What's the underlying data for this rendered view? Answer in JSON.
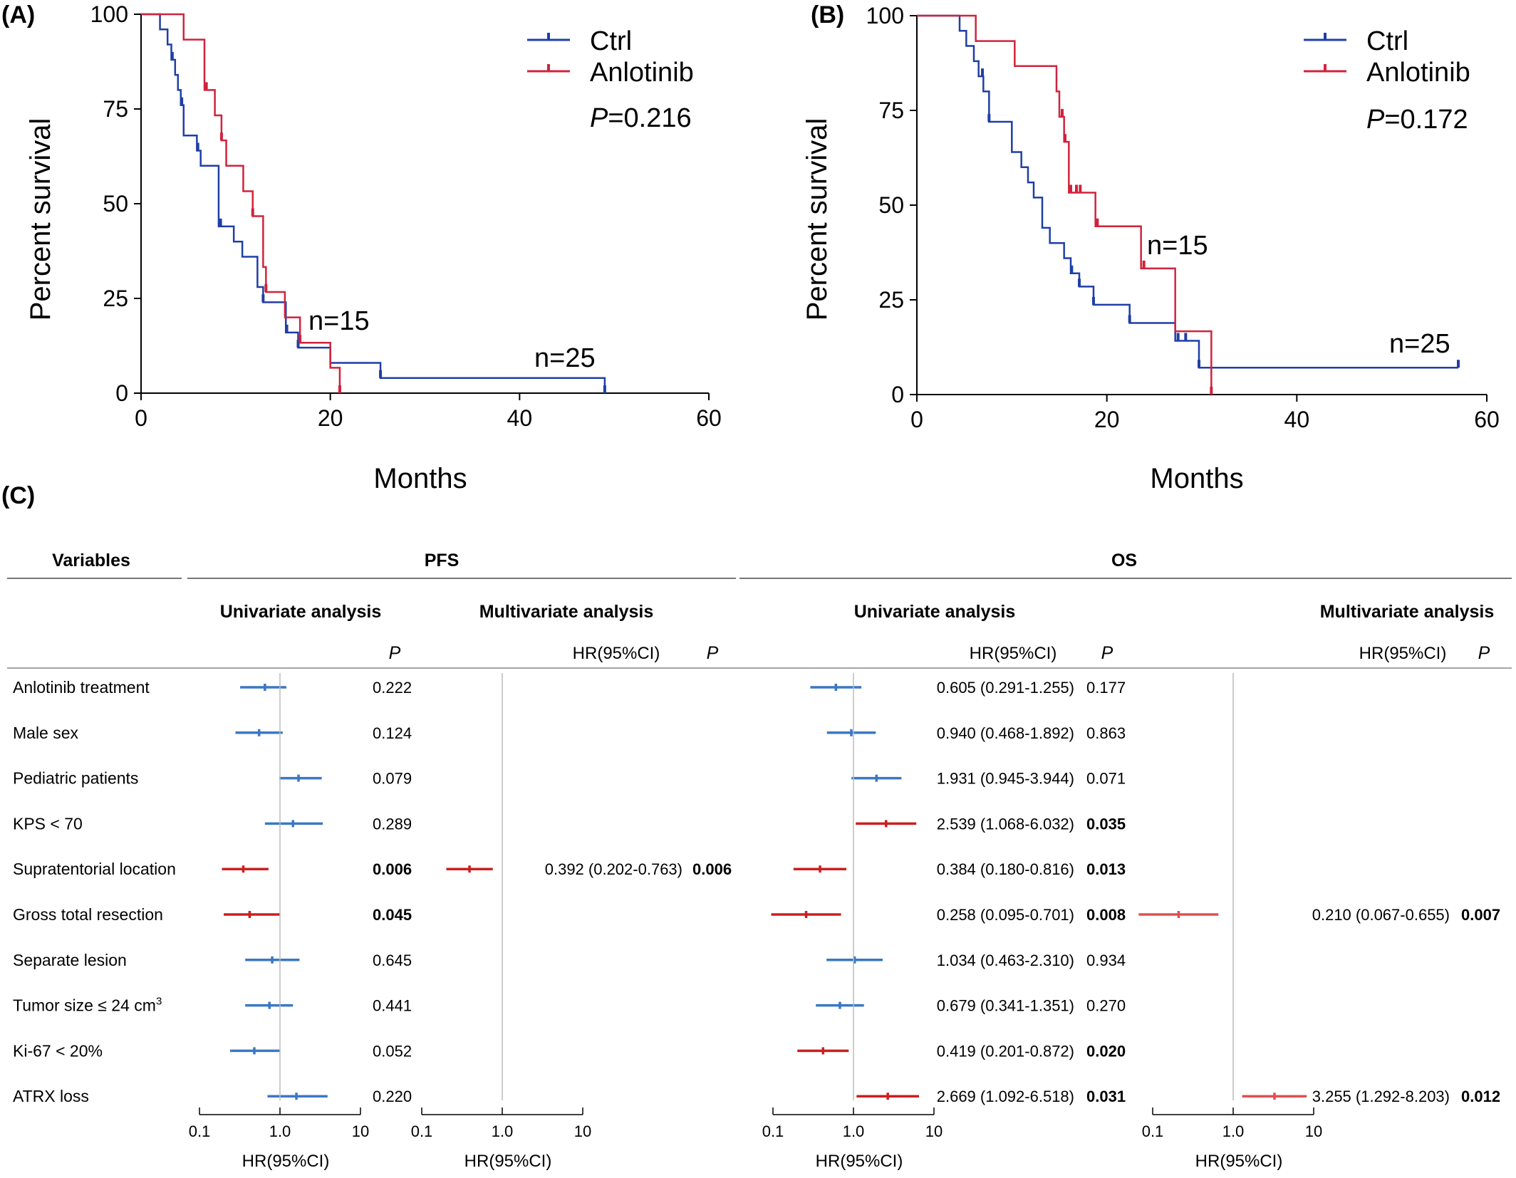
{
  "panels": {
    "A": "(A)",
    "B": "(B)",
    "C": "(C)"
  },
  "colors": {
    "ctrl": "#1f3fa6",
    "anlotinib": "#d0233c",
    "forest_blue": "#3a78c4",
    "forest_red": "#cc1f1f",
    "forest_red_light": "#e05050",
    "grid": "#bbbbbb"
  },
  "chart_data": [
    {
      "id": "A",
      "type": "line",
      "step": true,
      "xlabel": "Months",
      "ylabel": "Percent survival",
      "xlim": [
        0,
        60
      ],
      "ylim": [
        0,
        100
      ],
      "xticks": [
        0,
        20,
        40,
        60
      ],
      "yticks": [
        0,
        25,
        50,
        75,
        100
      ],
      "legend": [
        "Ctrl",
        "Anlotinib"
      ],
      "p_prefix": "P",
      "p_value": "=0.216",
      "annotations": [
        "n=15",
        "n=25"
      ],
      "series": [
        {
          "name": "Ctrl",
          "color": "ctrl",
          "x": [
            0,
            2,
            2.8,
            3.2,
            3.6,
            3.9,
            4.2,
            4.5,
            5.9,
            6.3,
            8.2,
            9.8,
            10.7,
            12.3,
            12.9,
            15.3,
            16.6,
            20.0,
            25.3,
            49.0
          ],
          "y": [
            100,
            96,
            92,
            88,
            84,
            80,
            76,
            68,
            64,
            60,
            44,
            40,
            36,
            28,
            24,
            16,
            12,
            8,
            4,
            0
          ],
          "censor_x": [
            3.3,
            4.3,
            6.0,
            8.4,
            12.9,
            15.4,
            16.6,
            25.3,
            49.0
          ],
          "censor_y": [
            88,
            76,
            64,
            44,
            24,
            16,
            12,
            4,
            0
          ]
        },
        {
          "name": "Anlotinib",
          "color": "anlotinib",
          "x": [
            0,
            4.5,
            6.7,
            7.8,
            8.5,
            9.0,
            10.8,
            11.8,
            12.9,
            13.2,
            15.2,
            16.8,
            20.0,
            21.0
          ],
          "y": [
            100,
            93.3,
            80,
            73.3,
            66.7,
            60,
            53.3,
            46.7,
            33.3,
            26.7,
            20,
            13.3,
            6.7,
            0
          ],
          "censor_x": [
            6.9,
            8.5,
            11.8,
            13.2,
            16.8,
            21.0
          ],
          "censor_y": [
            80,
            66.7,
            46.7,
            26.7,
            13.3,
            0
          ]
        }
      ]
    },
    {
      "id": "B",
      "type": "line",
      "step": true,
      "xlabel": "Months",
      "ylabel": "Percent survival",
      "xlim": [
        0,
        60
      ],
      "ylim": [
        0,
        100
      ],
      "xticks": [
        0,
        20,
        40,
        60
      ],
      "yticks": [
        0,
        25,
        50,
        75,
        100
      ],
      "legend": [
        "Ctrl",
        "Anlotinib"
      ],
      "p_prefix": "P",
      "p_value": "=0.172",
      "annotations": [
        "n=15",
        "n=25"
      ],
      "series": [
        {
          "name": "Ctrl",
          "color": "ctrl",
          "x": [
            0,
            4.5,
            5.2,
            6.0,
            6.5,
            7.0,
            7.6,
            10.0,
            11.0,
            11.7,
            12.3,
            13.2,
            14.0,
            15.5,
            16.2,
            17.1,
            18.6,
            22.4,
            27.2,
            29.7,
            57.0
          ],
          "y": [
            100,
            96,
            92,
            88,
            84,
            80,
            72,
            64,
            60,
            56,
            52,
            44,
            40,
            36,
            32,
            28.5,
            23.7,
            18.9,
            14.2,
            7.1,
            7.1
          ],
          "censor_x": [
            6.9,
            7.6,
            16.3,
            17.1,
            18.6,
            22.4,
            27.5,
            28.3,
            29.7,
            57.0
          ],
          "censor_y": [
            84,
            72,
            32,
            28.5,
            23.7,
            18.9,
            14.2,
            14.2,
            7.1,
            7.1
          ],
          "end_x": 57.0
        },
        {
          "name": "Anlotinib",
          "color": "anlotinib",
          "x": [
            0,
            6.2,
            10.3,
            14.7,
            15.0,
            15.5,
            16.0,
            18.8,
            23.6,
            27.2,
            31.0
          ],
          "y": [
            100,
            93.3,
            86.7,
            80,
            73.3,
            66.7,
            53.3,
            44.4,
            33.3,
            16.7,
            0
          ],
          "censor_x": [
            15.3,
            15.6,
            16.2,
            16.8,
            17.2,
            19.0,
            23.9,
            31.0
          ],
          "censor_y": [
            73.3,
            66.7,
            53.3,
            53.3,
            53.3,
            44.4,
            33.3,
            0
          ],
          "end_x": 31.0
        }
      ]
    },
    {
      "id": "C",
      "type": "table",
      "subtype": "forest",
      "headers": {
        "variables": "Variables",
        "pfs": "PFS",
        "os": "OS",
        "univariate": "Univariate analysis",
        "multivariate": "Multivariate  analysis",
        "p": "P",
        "hr": "HR(95%CI)"
      },
      "axis_ticks": [
        "0.1",
        "1.0",
        "10"
      ],
      "axis_label": "HR(95%CI)",
      "rows": [
        {
          "label": "Anlotinib treatment",
          "sup": "",
          "pfs_uni": {
            "hr": 0.65,
            "lo": 0.32,
            "hi": 1.2,
            "p": "0.222",
            "sig": false
          },
          "pfs_multi": null,
          "os_uni": {
            "hr": 0.605,
            "lo": 0.291,
            "hi": 1.255,
            "text": "0.605 (0.291-1.255)",
            "p": "0.177",
            "sig": false
          },
          "os_multi": null
        },
        {
          "label": "Male sex",
          "sup": "",
          "pfs_uni": {
            "hr": 0.55,
            "lo": 0.28,
            "hi": 1.08,
            "p": "0.124",
            "sig": false
          },
          "pfs_multi": null,
          "os_uni": {
            "hr": 0.94,
            "lo": 0.468,
            "hi": 1.892,
            "text": "0.940 (0.468-1.892)",
            "p": "0.863",
            "sig": false
          },
          "os_multi": null
        },
        {
          "label": "Pediatric patients",
          "sup": "",
          "pfs_uni": {
            "hr": 1.7,
            "lo": 0.98,
            "hi": 3.3,
            "p": "0.079",
            "sig": false
          },
          "pfs_multi": null,
          "os_uni": {
            "hr": 1.931,
            "lo": 0.945,
            "hi": 3.944,
            "text": "1.931 (0.945-3.944)",
            "p": "0.071",
            "sig": false
          },
          "os_multi": null
        },
        {
          "label": "KPS < 70",
          "sup": "",
          "pfs_uni": {
            "hr": 1.45,
            "lo": 0.65,
            "hi": 3.4,
            "p": "0.289",
            "sig": false
          },
          "pfs_multi": null,
          "os_uni": {
            "hr": 2.539,
            "lo": 1.068,
            "hi": 6.032,
            "text": "2.539 (1.068-6.032)",
            "p": "0.035",
            "sig": true
          },
          "os_multi": null
        },
        {
          "label": "Supratentorial location",
          "sup": "",
          "pfs_uni": {
            "hr": 0.35,
            "lo": 0.19,
            "hi": 0.72,
            "p": "0.006",
            "sig": true
          },
          "pfs_multi": {
            "hr": 0.392,
            "lo": 0.202,
            "hi": 0.763,
            "text": "0.392 (0.202-0.763)",
            "p": "0.006",
            "sig": true
          },
          "os_uni": {
            "hr": 0.384,
            "lo": 0.18,
            "hi": 0.816,
            "text": "0.384 (0.180-0.816)",
            "p": "0.013",
            "sig": true
          },
          "os_multi": null
        },
        {
          "label": "Gross total resection",
          "sup": "",
          "pfs_uni": {
            "hr": 0.42,
            "lo": 0.2,
            "hi": 0.99,
            "p": "0.045",
            "sig": true
          },
          "pfs_multi": null,
          "os_uni": {
            "hr": 0.258,
            "lo": 0.095,
            "hi": 0.701,
            "text": "0.258 (0.095-0.701)",
            "p": "0.008",
            "sig": true
          },
          "os_multi": {
            "hr": 0.21,
            "lo": 0.067,
            "hi": 0.655,
            "text": "0.210 (0.067-0.655)",
            "p": "0.007",
            "sig": true
          }
        },
        {
          "label": "Separate lesion",
          "sup": "",
          "pfs_uni": {
            "hr": 0.8,
            "lo": 0.37,
            "hi": 1.75,
            "p": "0.645",
            "sig": false
          },
          "pfs_multi": null,
          "os_uni": {
            "hr": 1.034,
            "lo": 0.463,
            "hi": 2.31,
            "text": "1.034 (0.463-2.310)",
            "p": "0.934",
            "sig": false
          },
          "os_multi": null
        },
        {
          "label": "Tumor size ≤ 24 cm",
          "sup": "3",
          "pfs_uni": {
            "hr": 0.74,
            "lo": 0.37,
            "hi": 1.45,
            "p": "0.441",
            "sig": false
          },
          "pfs_multi": null,
          "os_uni": {
            "hr": 0.679,
            "lo": 0.341,
            "hi": 1.351,
            "text": "0.679 (0.341-1.351)",
            "p": "0.270",
            "sig": false
          },
          "os_multi": null
        },
        {
          "label": "Ki-67 < 20%",
          "sup": "",
          "pfs_uni": {
            "hr": 0.48,
            "lo": 0.24,
            "hi": 1.0,
            "p": "0.052",
            "sig": false
          },
          "pfs_multi": null,
          "os_uni": {
            "hr": 0.419,
            "lo": 0.201,
            "hi": 0.872,
            "text": "0.419 (0.201-0.872)",
            "p": "0.020",
            "sig": true
          },
          "os_multi": null
        },
        {
          "label": "ATRX loss",
          "sup": "",
          "pfs_uni": {
            "hr": 1.6,
            "lo": 0.7,
            "hi": 3.9,
            "p": "0.220",
            "sig": false
          },
          "pfs_multi": null,
          "os_uni": {
            "hr": 2.669,
            "lo": 1.092,
            "hi": 6.518,
            "text": "2.669 (1.092-6.518)",
            "p": "0.031",
            "sig": true
          },
          "os_multi": {
            "hr": 3.255,
            "lo": 1.292,
            "hi": 8.203,
            "text": "3.255 (1.292-8.203)",
            "p": "0.012",
            "sig": true
          }
        }
      ]
    }
  ]
}
